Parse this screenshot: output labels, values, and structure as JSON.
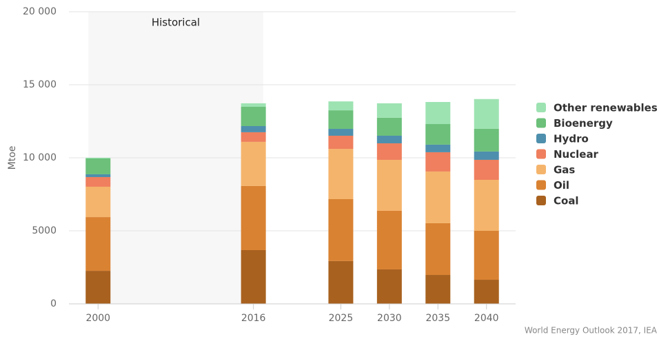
{
  "chart_data": {
    "type": "stacked_bar",
    "y_label": "Mtoe",
    "source": "World Energy Outlook 2017, IEA",
    "annotation": {
      "text": "Historical",
      "x": [
        1999,
        2017
      ]
    },
    "x": [
      2000,
      2016,
      2025,
      2030,
      2035,
      2040
    ],
    "xlim": [
      1997,
      2043
    ],
    "xticks": [
      2000,
      2016,
      2025,
      2030,
      2035,
      2040
    ],
    "ylim": [
      0,
      20000
    ],
    "yticks": [
      0,
      {
        "value": 5000,
        "label": "5000"
      },
      {
        "value": 10000,
        "label": "10 000"
      },
      {
        "value": 15000,
        "label": "15 000"
      },
      {
        "value": 20000,
        "label": "20 000"
      }
    ],
    "grid": true,
    "legend": "right",
    "series": [
      {
        "name": "Coal",
        "color": "#a8611f",
        "values": [
          2260,
          3680,
          2930,
          2360,
          1980,
          1650
        ]
      },
      {
        "name": "Oil",
        "color": "#d98232",
        "values": [
          3680,
          4390,
          4240,
          4010,
          3540,
          3350
        ]
      },
      {
        "name": "Gas",
        "color": "#f5b46c",
        "values": [
          2080,
          3020,
          3440,
          3490,
          3540,
          3490
        ]
      },
      {
        "name": "Nuclear",
        "color": "#ef7f5e",
        "values": [
          660,
          660,
          900,
          1130,
          1320,
          1370
        ]
      },
      {
        "name": "Hydro",
        "color": "#4e8fad",
        "values": [
          190,
          420,
          470,
          520,
          520,
          570
        ]
      },
      {
        "name": "Bioenergy",
        "color": "#6cc07a",
        "values": [
          1085,
          1320,
          1270,
          1230,
          1410,
          1560
        ]
      },
      {
        "name": "Other renewables",
        "color": "#9de3b2",
        "values": [
          50,
          240,
          610,
          990,
          1510,
          2030
        ]
      }
    ]
  }
}
